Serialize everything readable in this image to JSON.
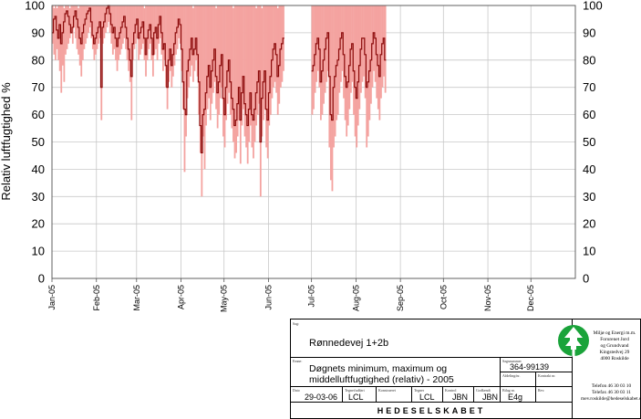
{
  "chart_data": {
    "type": "line",
    "ylabel": "Relativ luftfugtighed %",
    "ylim": [
      0,
      100
    ],
    "yticks": [
      0,
      10,
      20,
      30,
      40,
      50,
      60,
      70,
      80,
      90,
      100
    ],
    "months": [
      "Jan-05",
      "Feb-05",
      "Mar-05",
      "Apr-05",
      "May-05",
      "Jun-05",
      "Jul-05",
      "Aug-05",
      "Sep-05",
      "Oct-05",
      "Nov-05",
      "Dec-05"
    ],
    "grid": true,
    "series": [
      {
        "role": "daily-range",
        "color": "#f4a3a0",
        "segments": [
          {
            "start_day": 1,
            "min": [
              86,
              82,
              80,
              84,
              80,
              76,
              68,
              78,
              72,
              82,
              84,
              86,
              88,
              90,
              86,
              92,
              88,
              84,
              82,
              78,
              74,
              80,
              84,
              86,
              88,
              90,
              92,
              88,
              84,
              80,
              82,
              84,
              86,
              88,
              58,
              86,
              88,
              90,
              92,
              94,
              90,
              86,
              82,
              84,
              80,
              76,
              80,
              82,
              84,
              86,
              88,
              84,
              80,
              76,
              72,
              58,
              80,
              84,
              86,
              88,
              80,
              82,
              84,
              86,
              80,
              74,
              80,
              84,
              86,
              80,
              74,
              82,
              84,
              80,
              86,
              88,
              82,
              76,
              80,
              70,
              62,
              72,
              76,
              70,
              74,
              78,
              82,
              84,
              88,
              86,
              76,
              62,
              39,
              52,
              66,
              70,
              74,
              78,
              72,
              76,
              80,
              74,
              60,
              46,
              30,
              52,
              40,
              56,
              62,
              66,
              58,
              64,
              68,
              72,
              62,
              55,
              60,
              66,
              70,
              52,
              48,
              58,
              64,
              68,
              60,
              55,
              50,
              44,
              46,
              52,
              58,
              42,
              56,
              62,
              52,
              48,
              42,
              50,
              56,
              48,
              44,
              50,
              56,
              60,
              64,
              30,
              52,
              58,
              62,
              48,
              44,
              56,
              60,
              66,
              70,
              72,
              68,
              60,
              64,
              70,
              72,
              76
            ]
          },
          {
            "start_day": 182,
            "min": [
              60,
              62,
              68,
              72,
              76,
              70,
              58,
              60,
              64,
              68,
              72,
              76,
              48,
              36,
              32,
              48,
              52,
              58,
              60,
              68,
              72,
              76,
              66,
              58,
              52,
              56,
              62,
              68,
              72,
              60,
              52,
              48,
              56,
              62,
              68,
              72,
              74,
              66,
              48,
              52,
              58,
              64,
              70,
              76,
              72,
              66,
              62,
              58,
              66,
              70,
              74,
              68
            ]
          }
        ],
        "max": [
          100,
          99,
          100,
          99,
          100,
          100,
          100,
          100,
          99,
          100,
          100,
          100,
          99,
          100,
          100,
          100,
          100,
          100,
          99,
          100,
          100,
          100,
          100,
          100,
          100,
          100,
          100,
          100,
          100,
          100,
          100,
          100,
          100,
          100,
          100,
          100,
          100,
          100,
          100,
          100,
          100,
          100,
          100,
          100,
          100,
          100,
          100,
          100,
          100,
          100,
          100,
          100,
          100,
          100,
          100,
          100,
          100,
          100,
          100,
          100,
          100,
          100,
          100,
          100,
          99,
          100,
          100,
          100,
          100,
          100,
          100,
          100,
          100,
          100,
          100,
          100,
          100,
          100,
          100,
          100,
          100,
          100,
          100,
          100,
          100,
          100,
          100,
          100,
          100,
          100,
          100,
          100,
          100,
          100,
          100,
          100,
          100,
          100,
          99,
          100,
          100,
          100,
          100,
          100,
          100,
          100,
          100,
          100,
          100,
          100,
          100,
          100,
          100,
          100,
          99,
          100,
          100,
          100,
          100,
          100,
          100,
          100,
          100,
          100,
          100,
          100,
          99,
          100,
          100,
          100,
          100,
          100,
          100,
          100,
          100,
          100,
          100,
          100,
          100,
          100,
          100,
          100,
          99,
          100,
          100,
          100,
          99,
          100,
          100,
          100,
          100,
          100,
          100,
          100,
          100,
          100,
          100,
          99,
          100,
          100,
          100,
          100,
          100,
          100
        ]
      },
      {
        "role": "daily-mean",
        "color": "#8b0a0a",
        "segments": [
          {
            "start_day": 1,
            "values": [
              90,
              95,
              96,
              91,
              88,
              93,
              86,
              90,
              94,
              97,
              98,
              96,
              93,
              90,
              92,
              96,
              98,
              95,
              92,
              88,
              86,
              90,
              93,
              95,
              97,
              98,
              99,
              94,
              89,
              86,
              88,
              90,
              92,
              94,
              70,
              92,
              94,
              97,
              99,
              100,
              97,
              93,
              90,
              92,
              88,
              85,
              88,
              90,
              92,
              94,
              96,
              92,
              88,
              84,
              80,
              74,
              86,
              90,
              93,
              95,
              88,
              90,
              92,
              94,
              88,
              82,
              88,
              91,
              93,
              88,
              82,
              90,
              92,
              88,
              93,
              96,
              90,
              84,
              86,
              78,
              70,
              80,
              84,
              78,
              82,
              86,
              90,
              92,
              95,
              93,
              84,
              72,
              62,
              60,
              76,
              80,
              84,
              88,
              82,
              84,
              88,
              82,
              72,
              56,
              46,
              60,
              62,
              68,
              74,
              78,
              70,
              76,
              80,
              84,
              74,
              68,
              72,
              78,
              82,
              66,
              60,
              70,
              76,
              80,
              72,
              66,
              62,
              56,
              58,
              64,
              70,
              58,
              68,
              74,
              64,
              60,
              56,
              62,
              68,
              60,
              58,
              62,
              68,
              72,
              76,
              50,
              66,
              72,
              76,
              62,
              58,
              68,
              74,
              80,
              84,
              86,
              82,
              74,
              78,
              84,
              86,
              88
            ]
          },
          {
            "start_day": 182,
            "values": [
              76,
              78,
              82,
              86,
              88,
              84,
              72,
              76,
              80,
              84,
              88,
              90,
              74,
              60,
              58,
              70,
              74,
              78,
              80,
              84,
              88,
              90,
              82,
              74,
              70,
              72,
              78,
              84,
              86,
              76,
              70,
              66,
              72,
              78,
              84,
              88,
              88,
              82,
              70,
              72,
              76,
              80,
              86,
              90,
              88,
              82,
              78,
              74,
              82,
              86,
              88,
              80
            ]
          }
        ]
      }
    ]
  },
  "title_block": {
    "sag_label": "Sag:",
    "sag_value": "Rønnedevej 1+2b",
    "emne_label": "Emne:",
    "emne_value_1": "Døgnets minimum, maximum og",
    "emne_value_2": "middelluftfugtighed (relativ) - 2005",
    "sagsnummer_label": "Sagsnummer",
    "sagsnummer_value": "364-99139",
    "afdeling_label": "Afdeling/nr.",
    "kontrakt_label": "Kontrakt nr.",
    "dato_label": "Dato",
    "dato_value": "29-03-06",
    "tegnet_label": "Tegnet/udført",
    "tegnet_value": "LCL",
    "konstrueret_label": "Konstrueret",
    "tegner_label": "Tegner",
    "tegner_value": "LCL",
    "kontrol_label": "Kontrol",
    "kontrol_value": "JBN",
    "godkendt_label": "Godkendt",
    "godkendt_value": "JBN",
    "bilag_label": "Bilag nr.",
    "bilag_value": "E4g",
    "rev_label": "Rev.",
    "company_lines": [
      "Miljø og Energi m.m.",
      "Forurenet Jord",
      "og Grundvand",
      "Kingstedvej 29",
      "4000 Roskilde"
    ],
    "phone_lines": [
      "Telefon 46 30 03 10",
      "Telefax 46 30 03 11",
      "mev.roskilde@hedeselskabet.dk"
    ],
    "brand": "HEDESELSKABET"
  }
}
